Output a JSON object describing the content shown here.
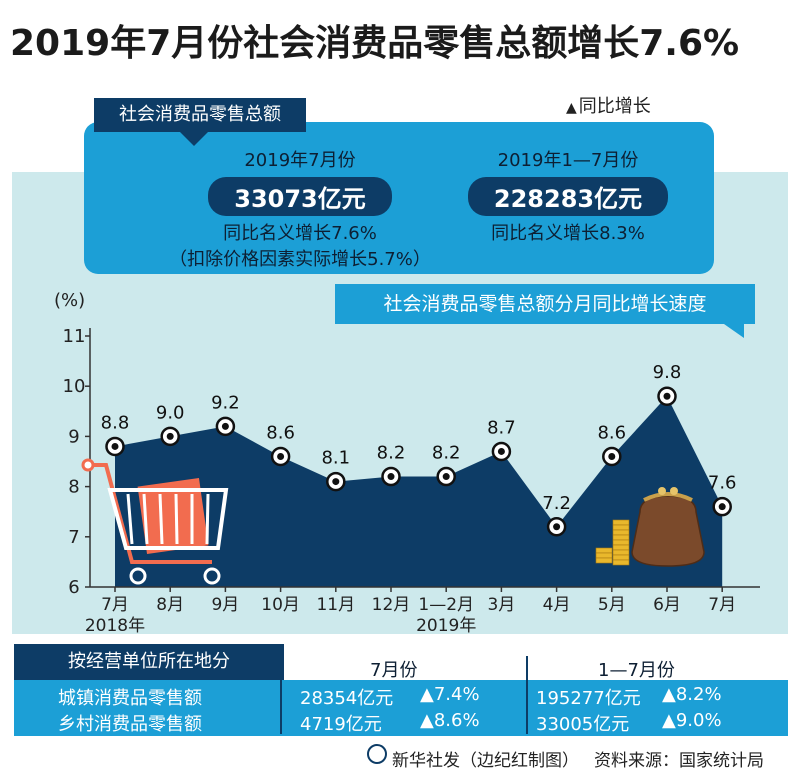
{
  "title": "2019年7月份社会消费品零售总额增长7.6%",
  "legend_note": "同比增长",
  "summary": {
    "tab": "社会消费品零售总额",
    "july": {
      "period": "2019年7月份",
      "amount": "33073亿元",
      "growth": "同比名义增长7.6%",
      "real": "（扣除价格因素实际增长5.7%）"
    },
    "ytd": {
      "period": "2019年1—7月份",
      "amount": "228283亿元",
      "growth": "同比名义增长8.3%"
    }
  },
  "chart_title": "社会消费品零售总额分月同比增长速度",
  "chart_data": {
    "type": "area",
    "ylabel": "(%)",
    "ylim": [
      6,
      11
    ],
    "yticks": [
      6,
      7,
      8,
      9,
      10,
      11
    ],
    "categories": [
      "7月",
      "8月",
      "9月",
      "10月",
      "11月",
      "12月",
      "1—2月",
      "3月",
      "4月",
      "5月",
      "6月",
      "7月"
    ],
    "values": [
      8.8,
      9.0,
      9.2,
      8.6,
      8.1,
      8.2,
      8.2,
      8.7,
      7.2,
      8.6,
      9.8,
      7.6
    ],
    "labels": [
      "8.8",
      "9.0",
      "9.2",
      "8.6",
      "8.1",
      "8.2",
      "8.2",
      "8.7",
      "7.2",
      "8.6",
      "9.8",
      "7.6"
    ],
    "year_labels": [
      {
        "text": "2018年",
        "category_index": 0
      },
      {
        "text": "2019年",
        "category_index": 6
      }
    ]
  },
  "colors": {
    "area": "#0d3c66",
    "background": "#cde9ec",
    "accent": "#1c9fd6",
    "cart": "#f26c4f"
  },
  "table": {
    "tab": "按经营单位所在地分",
    "periods": [
      "7月份",
      "1—7月份"
    ],
    "rows": [
      {
        "name": "城镇消费品零售额",
        "july_amount": "28354亿元",
        "july_growth": "▲7.4%",
        "ytd_amount": "195277亿元",
        "ytd_growth": "▲8.2%"
      },
      {
        "name": "乡村消费品零售额",
        "july_amount": "4719亿元",
        "july_growth": "▲8.6%",
        "ytd_amount": "33005亿元",
        "ytd_growth": "▲9.0%"
      }
    ]
  },
  "footer": {
    "credit": "新华社发（边纪红制图）",
    "source": "资料来源：国家统计局"
  }
}
